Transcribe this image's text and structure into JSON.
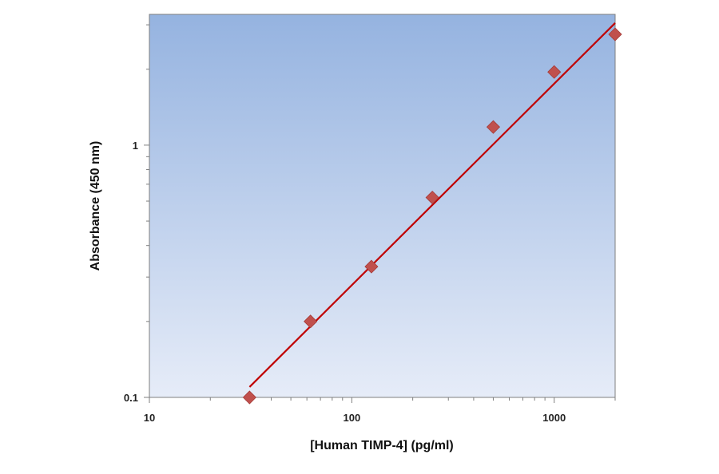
{
  "chart_data": {
    "type": "scatter",
    "xlabel": "[Human TIMP-4] (pg/ml)",
    "ylabel": "Absorbance (450 nm)",
    "x_scale": "log",
    "y_scale": "log",
    "xlim": [
      10,
      2000
    ],
    "ylim": [
      0.1,
      3.3
    ],
    "x_ticks": [
      {
        "value": 10,
        "label": "10"
      },
      {
        "value": 100,
        "label": "100"
      },
      {
        "value": 1000,
        "label": "1000"
      }
    ],
    "y_ticks": [
      {
        "value": 0.1,
        "label": "0.1"
      },
      {
        "value": 1,
        "label": "1"
      }
    ],
    "grid": false,
    "series": [
      {
        "kind": "points",
        "marker": "diamond",
        "color": "#c0504d",
        "x": [
          31.25,
          62.5,
          125,
          250,
          500,
          1000,
          2000
        ],
        "y": [
          0.1,
          0.2,
          0.33,
          0.62,
          1.18,
          1.95,
          2.75
        ]
      },
      {
        "kind": "fit-line",
        "color": "#c00000",
        "x": [
          31.25,
          2000
        ],
        "y": [
          0.11,
          3.05
        ]
      }
    ],
    "colors": {
      "plot_background_top": "#95b3e0",
      "plot_background_bottom": "#e6ecf8",
      "axis": "#7f7f7f"
    }
  }
}
